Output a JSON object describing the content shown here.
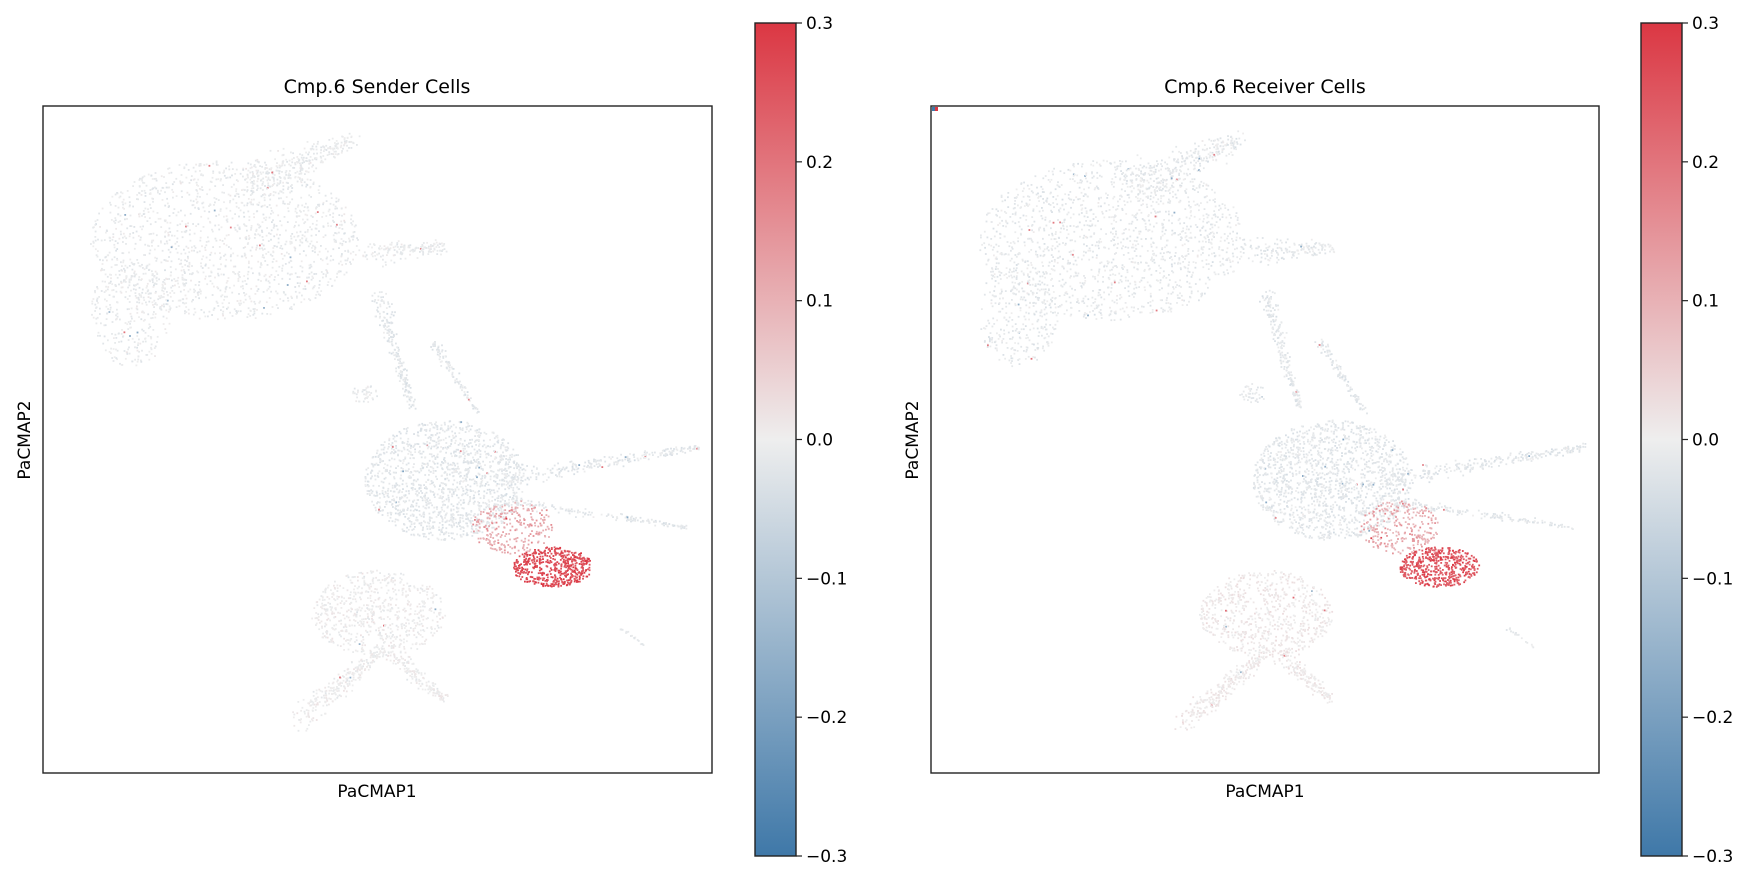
{
  "chart_data": [
    {
      "type": "scatter",
      "title": "Cmp.6 Sender Cells",
      "xlabel": "PaCMAP1",
      "ylabel": "PaCMAP2",
      "axis_ticks": false,
      "grid": false,
      "colorbar": {
        "vmin": -0.3,
        "vmax": 0.3,
        "ticks": [
          -0.3,
          -0.2,
          -0.1,
          0.0,
          0.1,
          0.2,
          0.3
        ],
        "tick_labels": [
          "−0.3",
          "−0.2",
          "−0.1",
          "0.0",
          "0.1",
          "0.2",
          "0.3"
        ],
        "placement": "right",
        "colors": {
          "low": "#3f78a8",
          "mid": "#eeeeee",
          "high": "#db3743"
        }
      },
      "regions": [
        {
          "name": "upper-left cluster",
          "value": -0.01
        },
        {
          "name": "central cluster",
          "value": -0.02
        },
        {
          "name": "lower-right hotspot",
          "value": 0.26
        },
        {
          "name": "lower cluster",
          "value": 0.0
        }
      ]
    },
    {
      "type": "scatter",
      "title": "Cmp.6 Receiver Cells",
      "xlabel": "PaCMAP1",
      "ylabel": "PaCMAP2",
      "axis_ticks": false,
      "grid": false,
      "colorbar": {
        "vmin": -0.3,
        "vmax": 0.3,
        "ticks": [
          -0.3,
          -0.2,
          -0.1,
          0.0,
          0.1,
          0.2,
          0.3
        ],
        "tick_labels": [
          "−0.3",
          "−0.2",
          "−0.1",
          "0.0",
          "0.1",
          "0.2",
          "0.3"
        ],
        "placement": "right",
        "colors": {
          "low": "#3f78a8",
          "mid": "#eeeeee",
          "high": "#db3743"
        }
      },
      "regions": [
        {
          "name": "upper-left cluster",
          "value": -0.015
        },
        {
          "name": "central cluster",
          "value": -0.02
        },
        {
          "name": "lower-right hotspot",
          "value": 0.24
        },
        {
          "name": "lower cluster",
          "value": 0.01
        }
      ]
    }
  ]
}
